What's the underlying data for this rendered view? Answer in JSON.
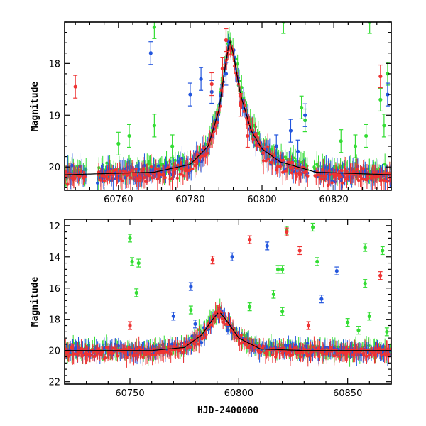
{
  "chart_data": [
    {
      "type": "scatter",
      "title": "",
      "xlabel": "",
      "ylabel": "Magnitude",
      "xlim": [
        60745,
        60836
      ],
      "ylim": [
        20.45,
        17.2
      ],
      "y_inverted": true,
      "xticks": [
        60760,
        60780,
        60800,
        60820
      ],
      "yticks": [
        18,
        19,
        20
      ],
      "model_curve": {
        "color": "#000000",
        "x": [
          60745,
          60770,
          60780,
          60785,
          60788,
          60790,
          60791,
          60792,
          60794,
          60797,
          60800,
          60805,
          60815,
          60836
        ],
        "y": [
          20.15,
          20.1,
          19.95,
          19.6,
          18.9,
          17.95,
          17.55,
          17.8,
          18.6,
          19.3,
          19.65,
          19.9,
          20.1,
          20.15
        ]
      },
      "series": [
        {
          "color": "#33dd33",
          "baseline": 20.0,
          "points": [
            [
              60770,
              17.3
            ],
            [
              60806,
              17.2
            ],
            [
              60830,
              17.2
            ],
            [
              60833,
              18.7
            ],
            [
              60835,
              18.2
            ],
            [
              60834,
              19.2
            ],
            [
              60775,
              19.6
            ],
            [
              60770,
              19.2
            ],
            [
              60812,
              19.1
            ],
            [
              60811,
              18.85
            ],
            [
              60822,
              19.5
            ],
            [
              60826,
              19.6
            ],
            [
              60829,
              19.4
            ],
            [
              60760,
              19.55
            ],
            [
              60763,
              19.4
            ]
          ]
        },
        {
          "color": "#2255dd",
          "baseline": 20.05,
          "points": [
            [
              60769,
              17.8
            ],
            [
              60783,
              18.3
            ],
            [
              60786,
              18.55
            ],
            [
              60780,
              18.6
            ],
            [
              60808,
              19.3
            ],
            [
              60810,
              19.7
            ],
            [
              60835,
              18.6
            ],
            [
              60812,
              19.0
            ],
            [
              60804,
              19.6
            ],
            [
              60790,
              18.2
            ]
          ]
        },
        {
          "color": "#ee3333",
          "baseline": 20.1,
          "points": [
            [
              60748,
              18.45
            ],
            [
              60790,
              17.55
            ],
            [
              60789,
              18.1
            ],
            [
              60786,
              18.4
            ],
            [
              60794,
              18.8
            ],
            [
              60833,
              18.25
            ],
            [
              60796,
              19.4
            ]
          ]
        }
      ]
    },
    {
      "type": "scatter",
      "title": "",
      "xlabel": "HJD-2400000",
      "ylabel": "Magnitude",
      "xlim": [
        60720,
        60870
      ],
      "ylim": [
        22.15,
        11.6
      ],
      "y_inverted": true,
      "xticks": [
        60750,
        60800,
        60850
      ],
      "yticks": [
        12,
        14,
        16,
        18,
        20,
        22
      ],
      "model_curve": {
        "color": "#000000",
        "x": [
          60720,
          60760,
          60775,
          60783,
          60788,
          60791,
          60794,
          60800,
          60810,
          60830,
          60870
        ],
        "y": [
          20.0,
          20.0,
          19.8,
          19.0,
          18.0,
          17.5,
          18.0,
          19.2,
          19.9,
          20.0,
          20.0
        ]
      },
      "series": [
        {
          "color": "#33dd33",
          "baseline": 20.0,
          "points": [
            [
              60750,
              12.8
            ],
            [
              60751,
              14.3
            ],
            [
              60754,
              14.4
            ],
            [
              60753,
              16.3
            ],
            [
              60778,
              17.4
            ],
            [
              60822,
              12.3
            ],
            [
              60820,
              14.8
            ],
            [
              60818,
              14.8
            ],
            [
              60834,
              12.1
            ],
            [
              60836,
              14.3
            ],
            [
              60816,
              16.4
            ],
            [
              60820,
              17.5
            ],
            [
              60805,
              17.2
            ],
            [
              60858,
              13.4
            ],
            [
              60866,
              13.6
            ],
            [
              60858,
              15.7
            ],
            [
              60860,
              17.8
            ],
            [
              60850,
              18.2
            ],
            [
              60855,
              18.7
            ],
            [
              60868,
              18.8
            ]
          ]
        },
        {
          "color": "#2255dd",
          "baseline": 20.05,
          "points": [
            [
              60797,
              14.0
            ],
            [
              60813,
              13.3
            ],
            [
              60845,
              14.9
            ],
            [
              60838,
              16.7
            ],
            [
              60778,
              15.9
            ],
            [
              60770,
              17.8
            ],
            [
              60780,
              18.3
            ],
            [
              60795,
              18.7
            ]
          ]
        },
        {
          "color": "#ee3333",
          "baseline": 20.15,
          "points": [
            [
              60788,
              14.2
            ],
            [
              60805,
              12.9
            ],
            [
              60822,
              12.4
            ],
            [
              60828,
              13.6
            ],
            [
              60865,
              15.2
            ],
            [
              60832,
              18.4
            ],
            [
              60750,
              18.4
            ],
            [
              60791,
              17.5
            ]
          ]
        }
      ]
    }
  ]
}
